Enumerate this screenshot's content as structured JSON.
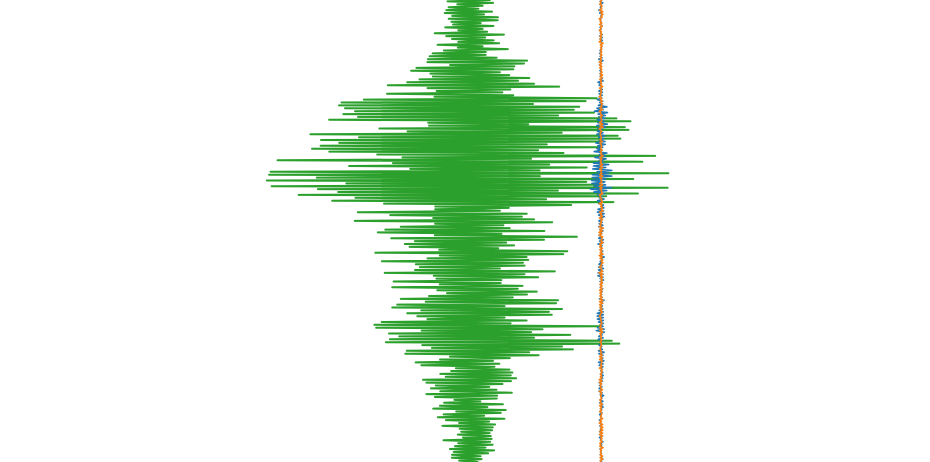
{
  "chart_data": {
    "type": "line",
    "orientation": "vertical-traces",
    "title": "",
    "xlabel": "",
    "ylabel": "",
    "axes_visible": false,
    "grid": false,
    "legend": "none",
    "y_samples": 160,
    "series": [
      {
        "key": "green",
        "color": "#2ca02c",
        "baseline": 0,
        "envelope_points": [
          {
            "t": 0.0,
            "amp": 0.18
          },
          {
            "t": 0.06,
            "amp": 0.22
          },
          {
            "t": 0.12,
            "amp": 0.35
          },
          {
            "t": 0.18,
            "amp": 0.55
          },
          {
            "t": 0.23,
            "amp": 1.0
          },
          {
            "t": 0.28,
            "amp": 1.1
          },
          {
            "t": 0.32,
            "amp": 1.25
          },
          {
            "t": 0.36,
            "amp": 1.35
          },
          {
            "t": 0.4,
            "amp": 1.45
          },
          {
            "t": 0.45,
            "amp": 0.8
          },
          {
            "t": 0.52,
            "amp": 0.75
          },
          {
            "t": 0.58,
            "amp": 0.6
          },
          {
            "t": 0.64,
            "amp": 0.5
          },
          {
            "t": 0.69,
            "amp": 0.9
          },
          {
            "t": 0.72,
            "amp": 1.1
          },
          {
            "t": 0.74,
            "amp": 1.25
          },
          {
            "t": 0.76,
            "amp": 0.6
          },
          {
            "t": 0.8,
            "amp": 0.35
          },
          {
            "t": 0.9,
            "amp": 0.25
          },
          {
            "t": 1.0,
            "amp": 0.15
          }
        ]
      },
      {
        "key": "blue",
        "color": "#1f77b4",
        "baseline": 0,
        "envelope_points": [
          {
            "t": 0.0,
            "amp": 0.01
          },
          {
            "t": 0.2,
            "amp": 0.02
          },
          {
            "t": 0.24,
            "amp": 0.06
          },
          {
            "t": 0.28,
            "amp": 0.04
          },
          {
            "t": 0.33,
            "amp": 0.05
          },
          {
            "t": 0.38,
            "amp": 0.1
          },
          {
            "t": 0.4,
            "amp": 0.12
          },
          {
            "t": 0.43,
            "amp": 0.03
          },
          {
            "t": 0.55,
            "amp": 0.02
          },
          {
            "t": 0.66,
            "amp": 0.02
          },
          {
            "t": 0.7,
            "amp": 0.04
          },
          {
            "t": 0.75,
            "amp": 0.02
          },
          {
            "t": 1.0,
            "amp": 0.01
          }
        ]
      },
      {
        "key": "orange",
        "color": "#ff7f0e",
        "baseline": 0,
        "envelope_points": [
          {
            "t": 0.0,
            "amp": 0.01
          },
          {
            "t": 1.0,
            "amp": 0.01
          }
        ]
      }
    ]
  }
}
